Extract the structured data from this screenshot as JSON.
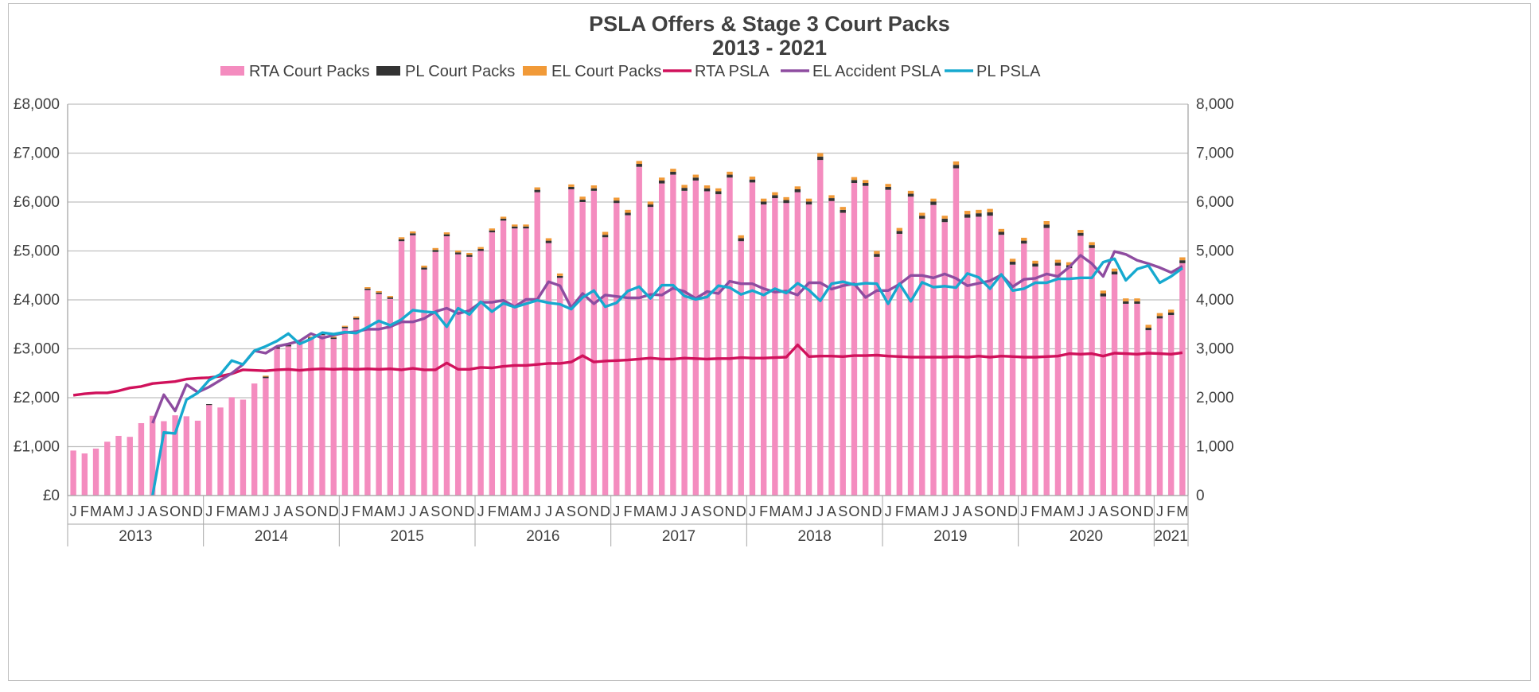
{
  "chart_data": {
    "type": "bar",
    "title": "PSLA Offers & Stage 3 Court Packs",
    "subtitle": "2013 - 2021",
    "legend_position": "top",
    "grid": true,
    "y_left": {
      "label": "",
      "ticks": [
        "£0",
        "£1,000",
        "£2,000",
        "£3,000",
        "£4,000",
        "£5,000",
        "£6,000",
        "£7,000",
        "£8,000"
      ],
      "range": [
        0,
        8000
      ]
    },
    "y_right": {
      "label": "",
      "ticks": [
        "0",
        "1,000",
        "2,000",
        "3,000",
        "4,000",
        "5,000",
        "6,000",
        "7,000",
        "8,000"
      ],
      "range": [
        0,
        8000
      ]
    },
    "month_labels": [
      "J",
      "F",
      "M",
      "A",
      "M",
      "J",
      "J",
      "A",
      "S",
      "O",
      "N",
      "D"
    ],
    "years": [
      "2013",
      "2014",
      "2015",
      "2016",
      "2017",
      "2018",
      "2019",
      "2020",
      "2021"
    ],
    "series": [
      {
        "name": "RTA Court Packs",
        "type": "bar",
        "axis": "right",
        "color": "#f48cbf",
        "values": [
          920,
          860,
          960,
          1100,
          1220,
          1200,
          1480,
          1630,
          1520,
          1640,
          1620,
          1530,
          1850,
          1800,
          2010,
          1960,
          2290,
          2400,
          3000,
          3050,
          3100,
          3200,
          3280,
          3200,
          3420,
          3600,
          4200,
          4120,
          4020,
          5200,
          5320,
          4620,
          4980,
          5300,
          4930,
          4880,
          5000,
          5380,
          5620,
          5460,
          5460,
          6200,
          5160,
          4450,
          6260,
          6000,
          6230,
          5280,
          5980,
          5730,
          6720,
          5900,
          6380,
          6560,
          6230,
          6440,
          6220,
          6160,
          6500,
          5200,
          6400,
          5950,
          6080,
          5980,
          6200,
          5950,
          6860,
          6020,
          5780,
          6390,
          6330,
          4880,
          6250,
          5350,
          6110,
          5660,
          5940,
          5590,
          6690,
          5680,
          5700,
          5720,
          5330,
          4720,
          5150,
          4680,
          5470,
          4700,
          4650,
          5310,
          5060,
          4070,
          4520,
          3920,
          3920,
          3380,
          3620,
          3690,
          4750
        ]
      },
      {
        "name": "PL Court Packs",
        "type": "bar",
        "axis": "right",
        "color": "#333333",
        "values": [
          0,
          0,
          0,
          0,
          0,
          0,
          0,
          0,
          0,
          0,
          0,
          0,
          20,
          0,
          0,
          0,
          0,
          30,
          30,
          30,
          30,
          30,
          30,
          30,
          30,
          30,
          30,
          30,
          30,
          40,
          40,
          40,
          40,
          40,
          40,
          40,
          40,
          40,
          40,
          40,
          40,
          50,
          50,
          40,
          50,
          50,
          50,
          50,
          50,
          50,
          60,
          50,
          60,
          60,
          60,
          60,
          60,
          60,
          60,
          60,
          60,
          60,
          60,
          60,
          60,
          60,
          70,
          60,
          60,
          60,
          60,
          60,
          60,
          60,
          60,
          60,
          70,
          70,
          70,
          70,
          70,
          70,
          60,
          60,
          60,
          60,
          70,
          60,
          60,
          60,
          60,
          60,
          60,
          50,
          50,
          50,
          50,
          50,
          60
        ]
      },
      {
        "name": "EL Court Packs",
        "type": "bar",
        "axis": "right",
        "color": "#f19a38",
        "values": [
          0,
          0,
          0,
          0,
          0,
          0,
          0,
          0,
          0,
          0,
          0,
          0,
          0,
          0,
          0,
          0,
          0,
          20,
          20,
          20,
          20,
          20,
          20,
          20,
          20,
          30,
          30,
          30,
          30,
          40,
          40,
          40,
          40,
          40,
          40,
          40,
          40,
          40,
          40,
          40,
          40,
          50,
          50,
          50,
          50,
          60,
          60,
          60,
          60,
          60,
          60,
          60,
          60,
          60,
          60,
          60,
          60,
          60,
          60,
          60,
          60,
          60,
          60,
          60,
          60,
          60,
          70,
          60,
          60,
          60,
          60,
          60,
          60,
          60,
          60,
          60,
          60,
          60,
          70,
          70,
          70,
          70,
          60,
          60,
          60,
          60,
          70,
          60,
          60,
          60,
          60,
          60,
          60,
          60,
          60,
          60,
          60,
          60,
          60
        ]
      },
      {
        "name": "RTA PSLA",
        "type": "line",
        "axis": "left",
        "color": "#d0115b",
        "values": [
          2050,
          2080,
          2100,
          2100,
          2140,
          2200,
          2230,
          2290,
          2310,
          2330,
          2380,
          2400,
          2410,
          2440,
          2490,
          2570,
          2560,
          2550,
          2570,
          2580,
          2560,
          2580,
          2590,
          2580,
          2590,
          2580,
          2590,
          2580,
          2590,
          2570,
          2600,
          2570,
          2570,
          2710,
          2580,
          2580,
          2620,
          2610,
          2640,
          2660,
          2660,
          2680,
          2700,
          2700,
          2730,
          2860,
          2730,
          2750,
          2760,
          2770,
          2790,
          2810,
          2790,
          2790,
          2810,
          2800,
          2790,
          2800,
          2800,
          2820,
          2810,
          2810,
          2820,
          2830,
          3080,
          2840,
          2850,
          2850,
          2840,
          2860,
          2860,
          2870,
          2850,
          2840,
          2830,
          2830,
          2830,
          2830,
          2840,
          2830,
          2850,
          2830,
          2850,
          2840,
          2830,
          2830,
          2840,
          2850,
          2900,
          2890,
          2900,
          2850,
          2910,
          2900,
          2890,
          2910,
          2900,
          2890,
          2920
        ]
      },
      {
        "name": "EL Accident PSLA",
        "type": "line",
        "axis": "left",
        "color": "#8e4ca0",
        "values": [
          null,
          null,
          null,
          null,
          null,
          null,
          null,
          1480,
          2060,
          1730,
          2270,
          2110,
          2220,
          2360,
          2500,
          2680,
          2960,
          2910,
          3050,
          3100,
          3160,
          3310,
          3220,
          3280,
          3330,
          3350,
          3400,
          3400,
          3450,
          3550,
          3550,
          3620,
          3760,
          3830,
          3720,
          3780,
          3950,
          3950,
          3990,
          3860,
          4010,
          4010,
          4370,
          4290,
          3840,
          4130,
          3920,
          4100,
          4070,
          4040,
          4040,
          4110,
          4100,
          4240,
          4170,
          4030,
          4170,
          4130,
          4380,
          4330,
          4330,
          4230,
          4160,
          4180,
          4100,
          4350,
          4350,
          4220,
          4290,
          4330,
          4050,
          4190,
          4190,
          4320,
          4500,
          4500,
          4450,
          4530,
          4440,
          4290,
          4340,
          4390,
          4510,
          4270,
          4420,
          4440,
          4530,
          4480,
          4670,
          4910,
          4740,
          4480,
          4990,
          4930,
          4810,
          4740,
          4660,
          4560,
          4690
        ]
      },
      {
        "name": "PL PSLA",
        "type": "line",
        "axis": "left",
        "color": "#16a9cf",
        "values": [
          null,
          null,
          null,
          null,
          null,
          null,
          null,
          0,
          1290,
          1270,
          1960,
          2100,
          2360,
          2480,
          2760,
          2680,
          2960,
          3050,
          3160,
          3310,
          3100,
          3200,
          3330,
          3300,
          3340,
          3320,
          3440,
          3570,
          3480,
          3600,
          3790,
          3760,
          3740,
          3450,
          3830,
          3700,
          3960,
          3760,
          3930,
          3850,
          3920,
          3990,
          3940,
          3910,
          3810,
          4050,
          4190,
          3860,
          3940,
          4180,
          4270,
          4030,
          4300,
          4300,
          4080,
          4010,
          4060,
          4290,
          4250,
          4110,
          4190,
          4100,
          4230,
          4140,
          4340,
          4200,
          3980,
          4330,
          4370,
          4310,
          4340,
          4330,
          3920,
          4330,
          3970,
          4360,
          4260,
          4280,
          4250,
          4540,
          4460,
          4230,
          4520,
          4190,
          4230,
          4350,
          4350,
          4430,
          4430,
          4450,
          4450,
          4770,
          4840,
          4400,
          4630,
          4700,
          4350,
          4480,
          4650
        ]
      }
    ]
  }
}
